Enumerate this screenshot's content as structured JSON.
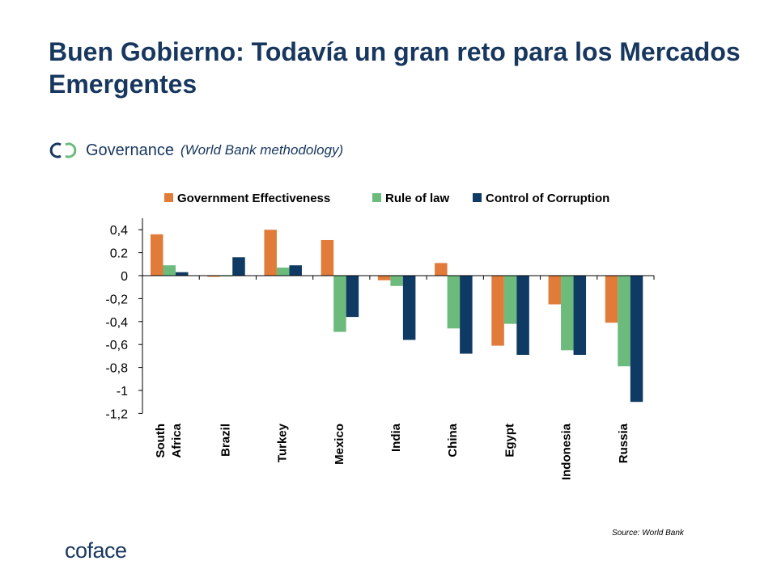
{
  "slide": {
    "title": "Buen Gobierno: Todavía un gran reto para los Mercados Emergentes",
    "subtitle_main": "Governance",
    "subtitle_note": "(World Bank methodology)",
    "source": "Source: World Bank",
    "logo": "coface",
    "colors": {
      "title": "#17375e"
    }
  },
  "chart_data": {
    "type": "bar",
    "categories": [
      "South Africa",
      "Brazil",
      "Turkey",
      "Mexico",
      "India",
      "China",
      "Egypt",
      "Indonesia",
      "Russia"
    ],
    "category_lines": [
      [
        "South",
        "Africa"
      ],
      [
        "Brazil"
      ],
      [
        "Turkey"
      ],
      [
        "Mexico"
      ],
      [
        "India"
      ],
      [
        "China"
      ],
      [
        "Egypt"
      ],
      [
        "Indonesia"
      ],
      [
        "Russia"
      ]
    ],
    "series": [
      {
        "name": "Government Effectiveness",
        "color": "#e07b39",
        "values": [
          0.36,
          -0.01,
          0.4,
          0.31,
          -0.04,
          0.11,
          -0.61,
          -0.25,
          -0.41
        ]
      },
      {
        "name": "Rule of law",
        "color": "#6cbb7d",
        "values": [
          0.09,
          0.0,
          0.07,
          -0.49,
          -0.09,
          -0.46,
          -0.42,
          -0.65,
          -0.79
        ]
      },
      {
        "name": "Control of Corruption",
        "color": "#0f3a63",
        "values": [
          0.03,
          0.16,
          0.09,
          -0.36,
          -0.56,
          -0.68,
          -0.69,
          -0.69,
          -1.1
        ]
      }
    ],
    "ylim": [
      -1.2,
      0.5
    ],
    "yticks": [
      0.4,
      0.2,
      0,
      -0.2,
      -0.4,
      -0.6,
      -0.8,
      -1,
      -1.2
    ],
    "ytick_labels": [
      "0,4",
      "0.2",
      "0",
      "-0,2",
      "-0,4",
      "-0,6",
      "-0,8",
      "-1",
      "-1,2"
    ],
    "legend_position": "top",
    "grid": false
  }
}
